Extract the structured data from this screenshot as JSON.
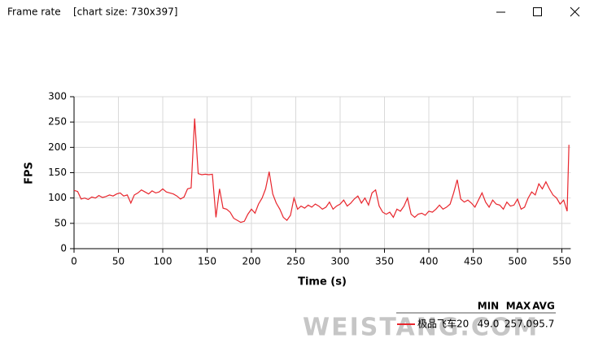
{
  "window": {
    "title": "Frame rate",
    "subtitle": "[chart size: 730x397]"
  },
  "chart_data": {
    "type": "line",
    "xlabel": "Time (s)",
    "ylabel": "FPS",
    "xlim": [
      0,
      560
    ],
    "xticks": [
      0,
      50,
      100,
      150,
      200,
      250,
      300,
      350,
      400,
      450,
      500,
      550
    ],
    "ylim": [
      0,
      300
    ],
    "yticks": [
      0,
      50,
      100,
      150,
      200,
      250,
      300
    ],
    "grid": true,
    "x": [
      0,
      4,
      8,
      12,
      16,
      20,
      24,
      28,
      32,
      36,
      40,
      44,
      48,
      52,
      56,
      60,
      64,
      68,
      72,
      76,
      80,
      84,
      88,
      92,
      96,
      100,
      104,
      108,
      112,
      116,
      120,
      124,
      128,
      132,
      136,
      140,
      144,
      148,
      152,
      156,
      160,
      164,
      168,
      172,
      176,
      180,
      184,
      188,
      192,
      196,
      200,
      204,
      208,
      212,
      216,
      220,
      224,
      228,
      232,
      236,
      240,
      244,
      248,
      252,
      256,
      260,
      264,
      268,
      272,
      276,
      280,
      284,
      288,
      292,
      296,
      300,
      304,
      308,
      312,
      316,
      320,
      324,
      328,
      332,
      336,
      340,
      344,
      348,
      352,
      356,
      360,
      364,
      368,
      372,
      376,
      380,
      384,
      388,
      392,
      396,
      400,
      404,
      408,
      412,
      416,
      420,
      424,
      428,
      432,
      436,
      440,
      444,
      448,
      452,
      456,
      460,
      464,
      468,
      472,
      476,
      480,
      484,
      488,
      492,
      496,
      500,
      504,
      508,
      512,
      516,
      520,
      524,
      528,
      532,
      536,
      540,
      544,
      548,
      552,
      556,
      558
    ],
    "series": [
      {
        "name": "极品飞车20",
        "color": "#e8262d",
        "values": [
          115,
          113,
          98,
          100,
          97,
          102,
          100,
          105,
          101,
          103,
          106,
          104,
          108,
          110,
          104,
          106,
          90,
          106,
          110,
          116,
          112,
          108,
          114,
          110,
          112,
          118,
          112,
          110,
          108,
          104,
          98,
          102,
          118,
          120,
          257,
          148,
          146,
          147,
          146,
          147,
          62,
          118,
          80,
          78,
          72,
          60,
          56,
          52,
          54,
          68,
          78,
          70,
          88,
          100,
          118,
          152,
          108,
          90,
          78,
          62,
          56,
          66,
          100,
          78,
          84,
          80,
          86,
          82,
          88,
          84,
          78,
          82,
          92,
          78,
          84,
          88,
          96,
          84,
          90,
          98,
          104,
          90,
          100,
          86,
          110,
          116,
          84,
          72,
          68,
          72,
          62,
          78,
          74,
          84,
          100,
          68,
          62,
          68,
          70,
          66,
          74,
          72,
          78,
          86,
          78,
          82,
          88,
          110,
          136,
          98,
          92,
          96,
          90,
          82,
          96,
          110,
          92,
          82,
          96,
          88,
          86,
          78,
          92,
          84,
          86,
          98,
          78,
          82,
          100,
          112,
          106,
          128,
          118,
          132,
          118,
          106,
          100,
          88,
          96,
          74,
          205
        ],
        "stats": {
          "min": {
            "value": 49,
            "label": "49.0"
          },
          "max": {
            "value": 257,
            "label": "257.0"
          },
          "avg": 95.7
        }
      }
    ],
    "legend_headers": [
      "MIN",
      "MAX",
      "AVG"
    ],
    "watermark": "WEISTANG.COM"
  }
}
